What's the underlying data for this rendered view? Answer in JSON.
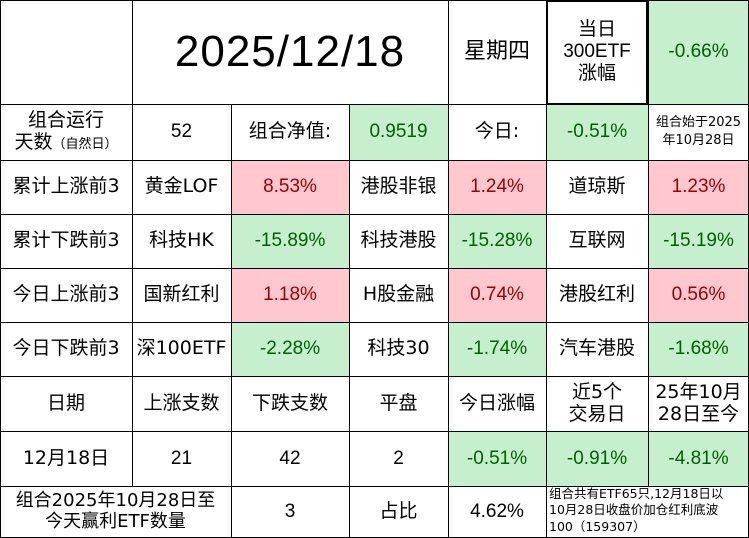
{
  "header": {
    "date": "2025/12/18",
    "weekday": "星期四",
    "index_label_line1": "当日",
    "index_label_line2": "300ETF",
    "index_label_line3": "涨幅",
    "index_change": "-0.66%"
  },
  "summary": {
    "days_label_line1": "组合运行",
    "days_label_line2": "天数",
    "days_label_note": "（自然日）",
    "days_value": "52",
    "nav_label": "组合净值:",
    "nav_value": "0.9519",
    "today_label": "今日:",
    "today_value": "-0.51%",
    "start_note_line1": "组合始于2025",
    "start_note_line2": "年10月28日"
  },
  "rank_rows": [
    {
      "label": "累计上涨前3",
      "items": [
        {
          "name": "黄金LOF",
          "value": "8.53%",
          "tone": "red"
        },
        {
          "name": "港股非银",
          "value": "1.24%",
          "tone": "red"
        },
        {
          "name": "道琼斯",
          "value": "1.23%",
          "tone": "red"
        }
      ]
    },
    {
      "label": "累计下跌前3",
      "items": [
        {
          "name": "科技HK",
          "value": "-15.89%",
          "tone": "green"
        },
        {
          "name": "科技港股",
          "value": "-15.28%",
          "tone": "green"
        },
        {
          "name": "互联网",
          "value": "-15.19%",
          "tone": "green"
        }
      ]
    },
    {
      "label": "今日上涨前3",
      "items": [
        {
          "name": "国新红利",
          "value": "1.18%",
          "tone": "red"
        },
        {
          "name": "H股金融",
          "value": "0.74%",
          "tone": "red"
        },
        {
          "name": "港股红利",
          "value": "0.56%",
          "tone": "red"
        }
      ]
    },
    {
      "label": "今日下跌前3",
      "items": [
        {
          "name": "深100ETF",
          "value": "-2.28%",
          "tone": "green"
        },
        {
          "name": "科技30",
          "value": "-1.74%",
          "tone": "green"
        },
        {
          "name": "汽车港股",
          "value": "-1.68%",
          "tone": "green"
        }
      ]
    }
  ],
  "stats_header": {
    "date": "日期",
    "up_count": "上涨支数",
    "down_count": "下跌支数",
    "flat": "平盘",
    "today_change": "今日涨幅",
    "last5_line1": "近5个",
    "last5_line2": "交易日",
    "since_line1": "25年10月",
    "since_line2": "28日至今"
  },
  "stats_row": {
    "date": "12月18日",
    "up_count": "21",
    "down_count": "42",
    "flat": "2",
    "today_change": "-0.51%",
    "last5": "-0.91%",
    "since": "-4.81%"
  },
  "footer": {
    "label_line1": "组合2025年10月28日至",
    "label_line2": "今天赢利ETF数量",
    "count": "3",
    "ratio_label": "占比",
    "ratio_value": "4.62%",
    "note_line1": "组合共有ETF65只,12月18日以",
    "note_line2": "10月28日收盘价加仓红利底波",
    "note_line3": "100（159307）"
  }
}
